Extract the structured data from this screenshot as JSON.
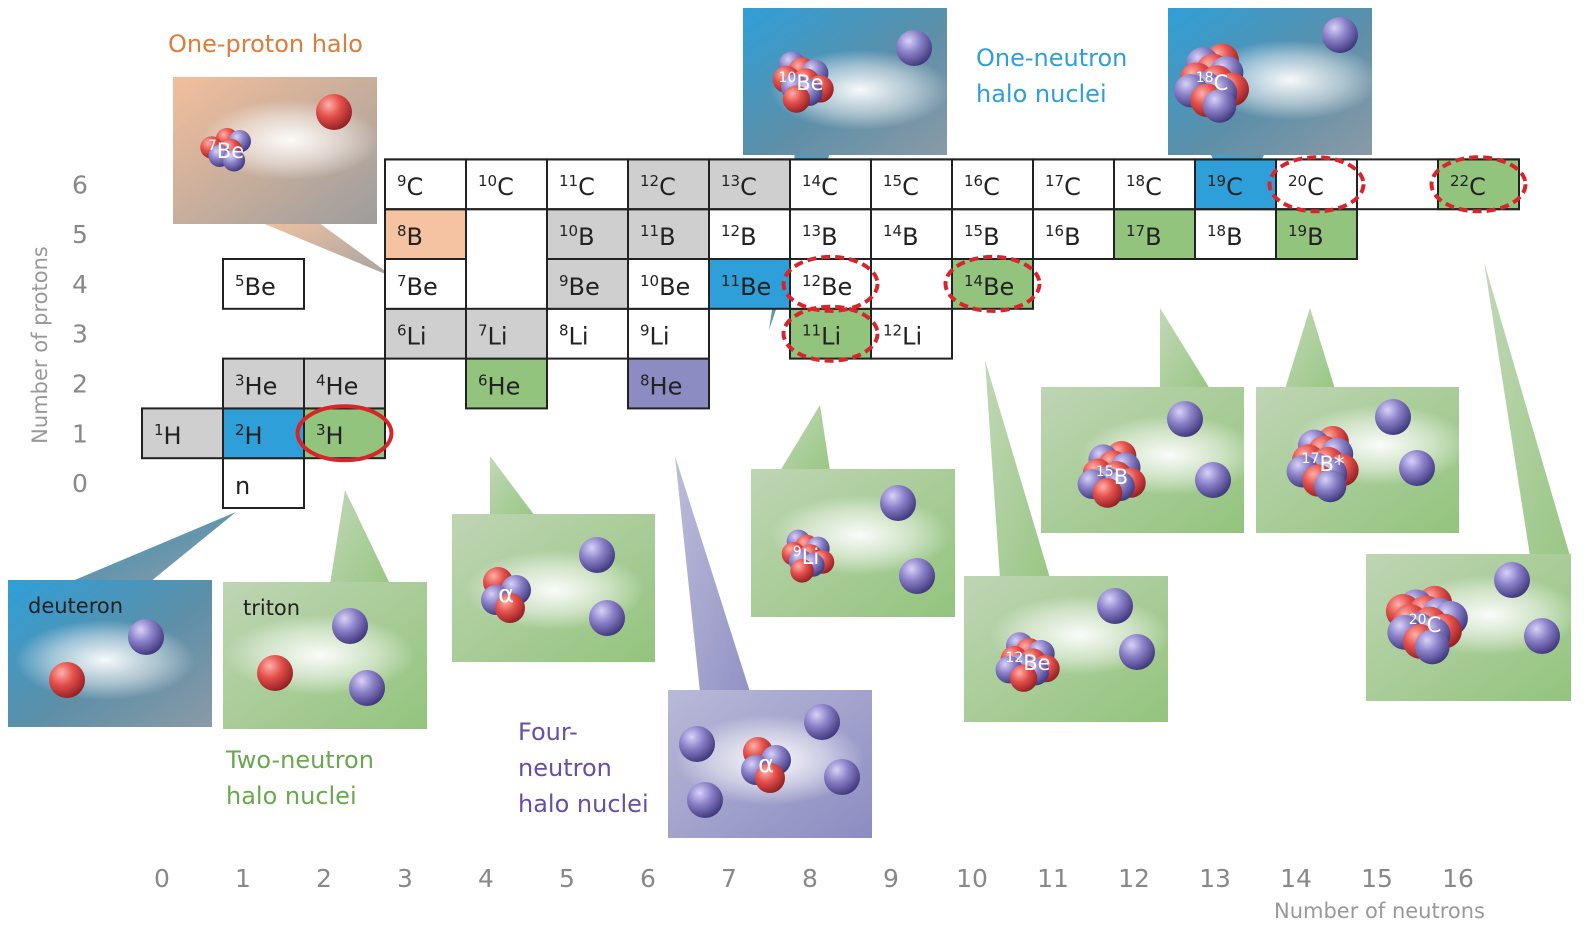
{
  "axes": {
    "y_title": "Number of protons",
    "x_title": "Number of neutrons",
    "y_ticks": [
      "0",
      "1",
      "2",
      "3",
      "4",
      "5",
      "6"
    ],
    "x_ticks": [
      "0",
      "1",
      "2",
      "3",
      "4",
      "5",
      "6",
      "7",
      "8",
      "9",
      "10",
      "11",
      "12",
      "13",
      "14",
      "15",
      "16"
    ]
  },
  "colors": {
    "stable": "#cfcfcf",
    "one_proton_halo": "#f5c3a1",
    "one_neutron_halo": "#2e9fd8",
    "two_neutron_halo": "#93c47d",
    "four_neutron_halo": "#8c8cc2",
    "unbound_marker": "#d6262b",
    "proton": "#e04848",
    "neutron": "#8a80c8"
  },
  "nuclides": [
    {
      "sym": "n",
      "mass": "",
      "N": 1,
      "Z": 0,
      "type": "plain"
    },
    {
      "sym": "H",
      "mass": "1",
      "N": 0,
      "Z": 1,
      "type": "stable"
    },
    {
      "sym": "H",
      "mass": "2",
      "N": 1,
      "Z": 1,
      "type": "one_neutron_halo"
    },
    {
      "sym": "H",
      "mass": "3",
      "N": 2,
      "Z": 1,
      "type": "two_neutron_halo"
    },
    {
      "sym": "He",
      "mass": "3",
      "N": 1,
      "Z": 2,
      "type": "stable"
    },
    {
      "sym": "He",
      "mass": "4",
      "N": 2,
      "Z": 2,
      "type": "stable"
    },
    {
      "sym": "He",
      "mass": "6",
      "N": 4,
      "Z": 2,
      "type": "two_neutron_halo"
    },
    {
      "sym": "He",
      "mass": "8",
      "N": 6,
      "Z": 2,
      "type": "four_neutron_halo"
    },
    {
      "sym": "Li",
      "mass": "6",
      "N": 3,
      "Z": 3,
      "type": "stable"
    },
    {
      "sym": "Li",
      "mass": "7",
      "N": 4,
      "Z": 3,
      "type": "stable"
    },
    {
      "sym": "Li",
      "mass": "8",
      "N": 5,
      "Z": 3,
      "type": "plain"
    },
    {
      "sym": "Li",
      "mass": "9",
      "N": 6,
      "Z": 3,
      "type": "plain"
    },
    {
      "sym": "Li",
      "mass": "11",
      "N": 8,
      "Z": 3,
      "type": "two_neutron_halo"
    },
    {
      "sym": "Li",
      "mass": "12",
      "N": 9,
      "Z": 3,
      "type": "plain"
    },
    {
      "sym": "Be",
      "mass": "5",
      "N": 1,
      "Z": 4,
      "type": "plain"
    },
    {
      "sym": "Be",
      "mass": "7",
      "N": 3,
      "Z": 4,
      "type": "plain"
    },
    {
      "sym": "Be",
      "mass": "9",
      "N": 5,
      "Z": 4,
      "type": "stable"
    },
    {
      "sym": "Be",
      "mass": "10",
      "N": 6,
      "Z": 4,
      "type": "plain"
    },
    {
      "sym": "Be",
      "mass": "11",
      "N": 7,
      "Z": 4,
      "type": "one_neutron_halo"
    },
    {
      "sym": "Be",
      "mass": "12",
      "N": 8,
      "Z": 4,
      "type": "plain"
    },
    {
      "sym": "Be",
      "mass": "14",
      "N": 10,
      "Z": 4,
      "type": "two_neutron_halo"
    },
    {
      "sym": "B",
      "mass": "8",
      "N": 3,
      "Z": 5,
      "type": "one_proton_halo"
    },
    {
      "sym": "B",
      "mass": "10",
      "N": 5,
      "Z": 5,
      "type": "stable"
    },
    {
      "sym": "B",
      "mass": "11",
      "N": 6,
      "Z": 5,
      "type": "stable"
    },
    {
      "sym": "B",
      "mass": "12",
      "N": 7,
      "Z": 5,
      "type": "plain"
    },
    {
      "sym": "B",
      "mass": "13",
      "N": 8,
      "Z": 5,
      "type": "plain"
    },
    {
      "sym": "B",
      "mass": "14",
      "N": 9,
      "Z": 5,
      "type": "plain"
    },
    {
      "sym": "B",
      "mass": "15",
      "N": 10,
      "Z": 5,
      "type": "plain"
    },
    {
      "sym": "B",
      "mass": "16",
      "N": 11,
      "Z": 5,
      "type": "plain"
    },
    {
      "sym": "B",
      "mass": "17",
      "N": 12,
      "Z": 5,
      "type": "two_neutron_halo"
    },
    {
      "sym": "B",
      "mass": "18",
      "N": 13,
      "Z": 5,
      "type": "plain"
    },
    {
      "sym": "B",
      "mass": "19",
      "N": 14,
      "Z": 5,
      "type": "two_neutron_halo"
    },
    {
      "sym": "C",
      "mass": "9",
      "N": 3,
      "Z": 6,
      "type": "plain"
    },
    {
      "sym": "C",
      "mass": "10",
      "N": 4,
      "Z": 6,
      "type": "plain"
    },
    {
      "sym": "C",
      "mass": "11",
      "N": 5,
      "Z": 6,
      "type": "plain"
    },
    {
      "sym": "C",
      "mass": "12",
      "N": 6,
      "Z": 6,
      "type": "stable"
    },
    {
      "sym": "C",
      "mass": "13",
      "N": 7,
      "Z": 6,
      "type": "stable"
    },
    {
      "sym": "C",
      "mass": "14",
      "N": 8,
      "Z": 6,
      "type": "plain"
    },
    {
      "sym": "C",
      "mass": "15",
      "N": 9,
      "Z": 6,
      "type": "plain"
    },
    {
      "sym": "C",
      "mass": "16",
      "N": 10,
      "Z": 6,
      "type": "plain"
    },
    {
      "sym": "C",
      "mass": "17",
      "N": 11,
      "Z": 6,
      "type": "plain"
    },
    {
      "sym": "C",
      "mass": "18",
      "N": 12,
      "Z": 6,
      "type": "plain"
    },
    {
      "sym": "C",
      "mass": "19",
      "N": 13,
      "Z": 6,
      "type": "one_neutron_halo"
    },
    {
      "sym": "C",
      "mass": "20",
      "N": 14,
      "Z": 6,
      "type": "plain"
    },
    {
      "sym": "C",
      "mass": "22",
      "N": 16,
      "Z": 6,
      "type": "two_neutron_halo"
    }
  ],
  "highlight_outline": {
    "from_N": 3,
    "to_N": 16,
    "Z": 6
  },
  "markers": [
    {
      "N": 2,
      "Z": 1,
      "style": "solid"
    },
    {
      "N": 8,
      "Z": 4,
      "style": "dashed"
    },
    {
      "N": 8,
      "Z": 3,
      "style": "dashed"
    },
    {
      "N": 10,
      "Z": 4,
      "style": "dashed"
    },
    {
      "N": 14,
      "Z": 6,
      "style": "dashed"
    },
    {
      "N": 16,
      "Z": 6,
      "style": "dashed"
    }
  ],
  "captions": [
    {
      "id": "one-proton-halo-caption",
      "lines": [
        "One-proton halo"
      ],
      "color": "#e07b39"
    },
    {
      "id": "one-neutron-halo-caption",
      "lines": [
        "One-neutron",
        "halo nuclei"
      ],
      "color": "#2e9fd8"
    },
    {
      "id": "two-neutron-halo-caption",
      "lines": [
        "Two-neutron",
        "halo nuclei"
      ],
      "color": "#6aa84f"
    },
    {
      "id": "four-neutron-halo-caption",
      "lines": [
        "Four-",
        "neutron",
        "halo nuclei"
      ],
      "color": "#674ea7"
    }
  ],
  "panels": [
    {
      "id": "panel-7be",
      "kind": "one_proton_halo",
      "core": "Be",
      "core_mass": "7",
      "core_label_suffix": "",
      "panel_label": "",
      "anchor": {
        "N": 3,
        "Z": 5
      }
    },
    {
      "id": "panel-10be",
      "kind": "one_neutron_halo",
      "core": "Be",
      "core_mass": "10",
      "core_label_suffix": "",
      "panel_label": "",
      "anchor": {
        "N": 7,
        "Z": 4
      }
    },
    {
      "id": "panel-18c",
      "kind": "one_neutron_halo",
      "core": "C",
      "core_mass": "18",
      "core_label_suffix": "",
      "panel_label": "",
      "anchor": {
        "N": 13,
        "Z": 6
      }
    },
    {
      "id": "panel-deuteron",
      "kind": "one_neutron_halo",
      "core": "",
      "core_mass": "",
      "core_label_suffix": "",
      "panel_label": "deuteron",
      "anchor": {
        "N": 1,
        "Z": 1
      }
    },
    {
      "id": "panel-triton",
      "kind": "two_neutron_halo",
      "core": "",
      "core_mass": "",
      "core_label_suffix": "",
      "panel_label": "triton",
      "anchor": {
        "N": 2,
        "Z": 1
      }
    },
    {
      "id": "panel-6he",
      "kind": "two_neutron_halo",
      "core": "α",
      "core_mass": "",
      "core_label_suffix": "",
      "panel_label": "",
      "anchor": {
        "N": 4,
        "Z": 2
      }
    },
    {
      "id": "panel-8he",
      "kind": "four_neutron_halo",
      "core": "α",
      "core_mass": "",
      "core_label_suffix": "",
      "panel_label": "",
      "anchor": {
        "N": 6,
        "Z": 2
      }
    },
    {
      "id": "panel-11li",
      "kind": "two_neutron_halo",
      "core": "Li",
      "core_mass": "9",
      "core_label_suffix": "",
      "panel_label": "",
      "anchor": {
        "N": 8,
        "Z": 3
      }
    },
    {
      "id": "panel-14be",
      "kind": "two_neutron_halo",
      "core": "Be",
      "core_mass": "12",
      "core_label_suffix": "",
      "panel_label": "",
      "anchor": {
        "N": 10,
        "Z": 4
      }
    },
    {
      "id": "panel-17b",
      "kind": "two_neutron_halo",
      "core": "B",
      "core_mass": "15",
      "core_label_suffix": "",
      "panel_label": "",
      "anchor": {
        "N": 12,
        "Z": 5
      }
    },
    {
      "id": "panel-19b",
      "kind": "two_neutron_halo",
      "core": "B",
      "core_mass": "17",
      "core_label_suffix": "*",
      "panel_label": "",
      "anchor": {
        "N": 14,
        "Z": 5
      }
    },
    {
      "id": "panel-22c",
      "kind": "two_neutron_halo",
      "core": "C",
      "core_mass": "20",
      "core_label_suffix": "",
      "panel_label": "",
      "anchor": {
        "N": 16,
        "Z": 6
      }
    }
  ]
}
